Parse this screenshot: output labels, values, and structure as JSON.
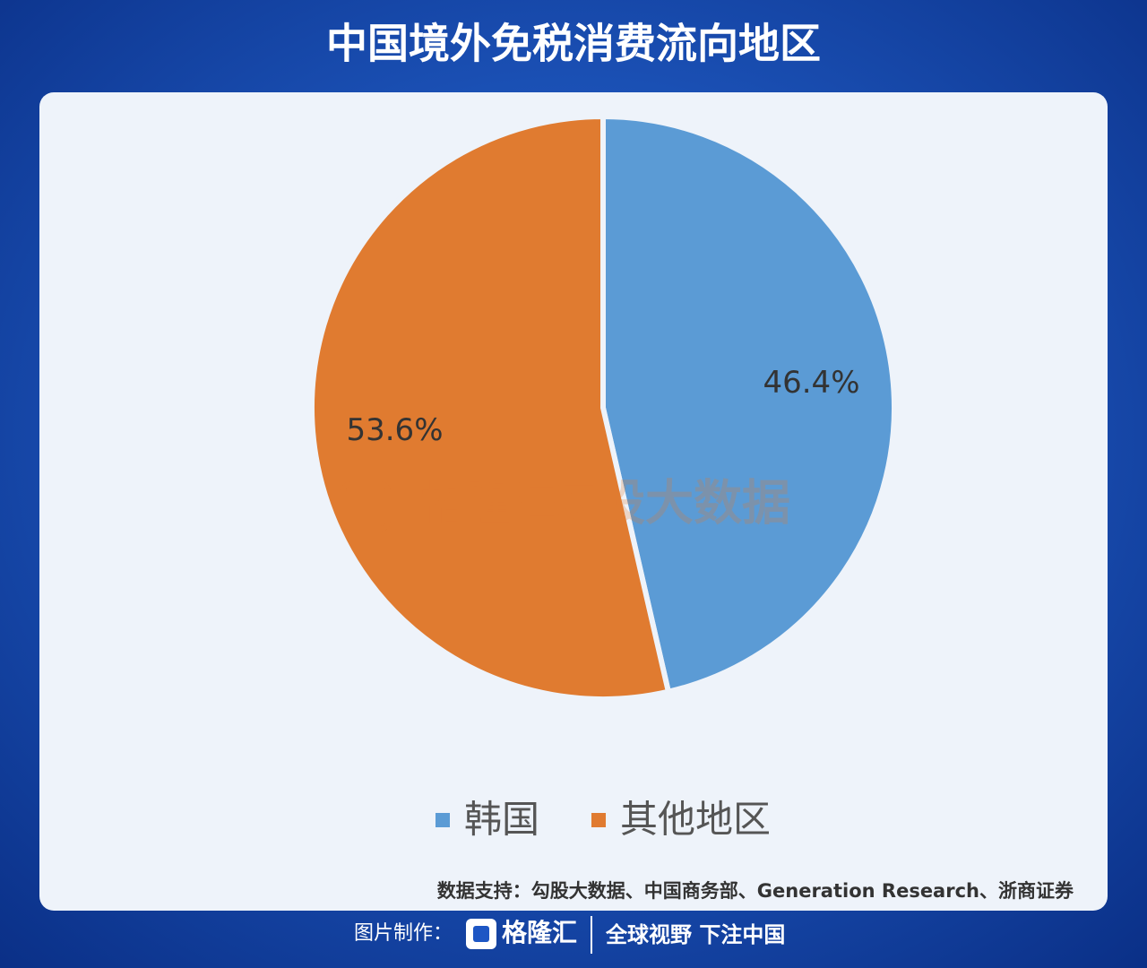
{
  "chart_data": {
    "type": "pie",
    "title": "中国境外免税消费流向地区",
    "categories": [
      "韩国",
      "其他地区"
    ],
    "values": [
      46.4,
      53.6
    ],
    "value_labels": [
      "46.4%",
      "53.6%"
    ],
    "colors": [
      "#5b9bd5",
      "#e07b30"
    ],
    "legend": "bottom",
    "source": "数据支持：勾股大数据、中国商务部、Generation Research、浙商证券"
  },
  "watermark": [
    "格隆汇",
    "勾股大数据"
  ],
  "footer": {
    "label": "图片制作：",
    "brand": "格隆汇",
    "slogan": "全球视野 下注中国"
  }
}
